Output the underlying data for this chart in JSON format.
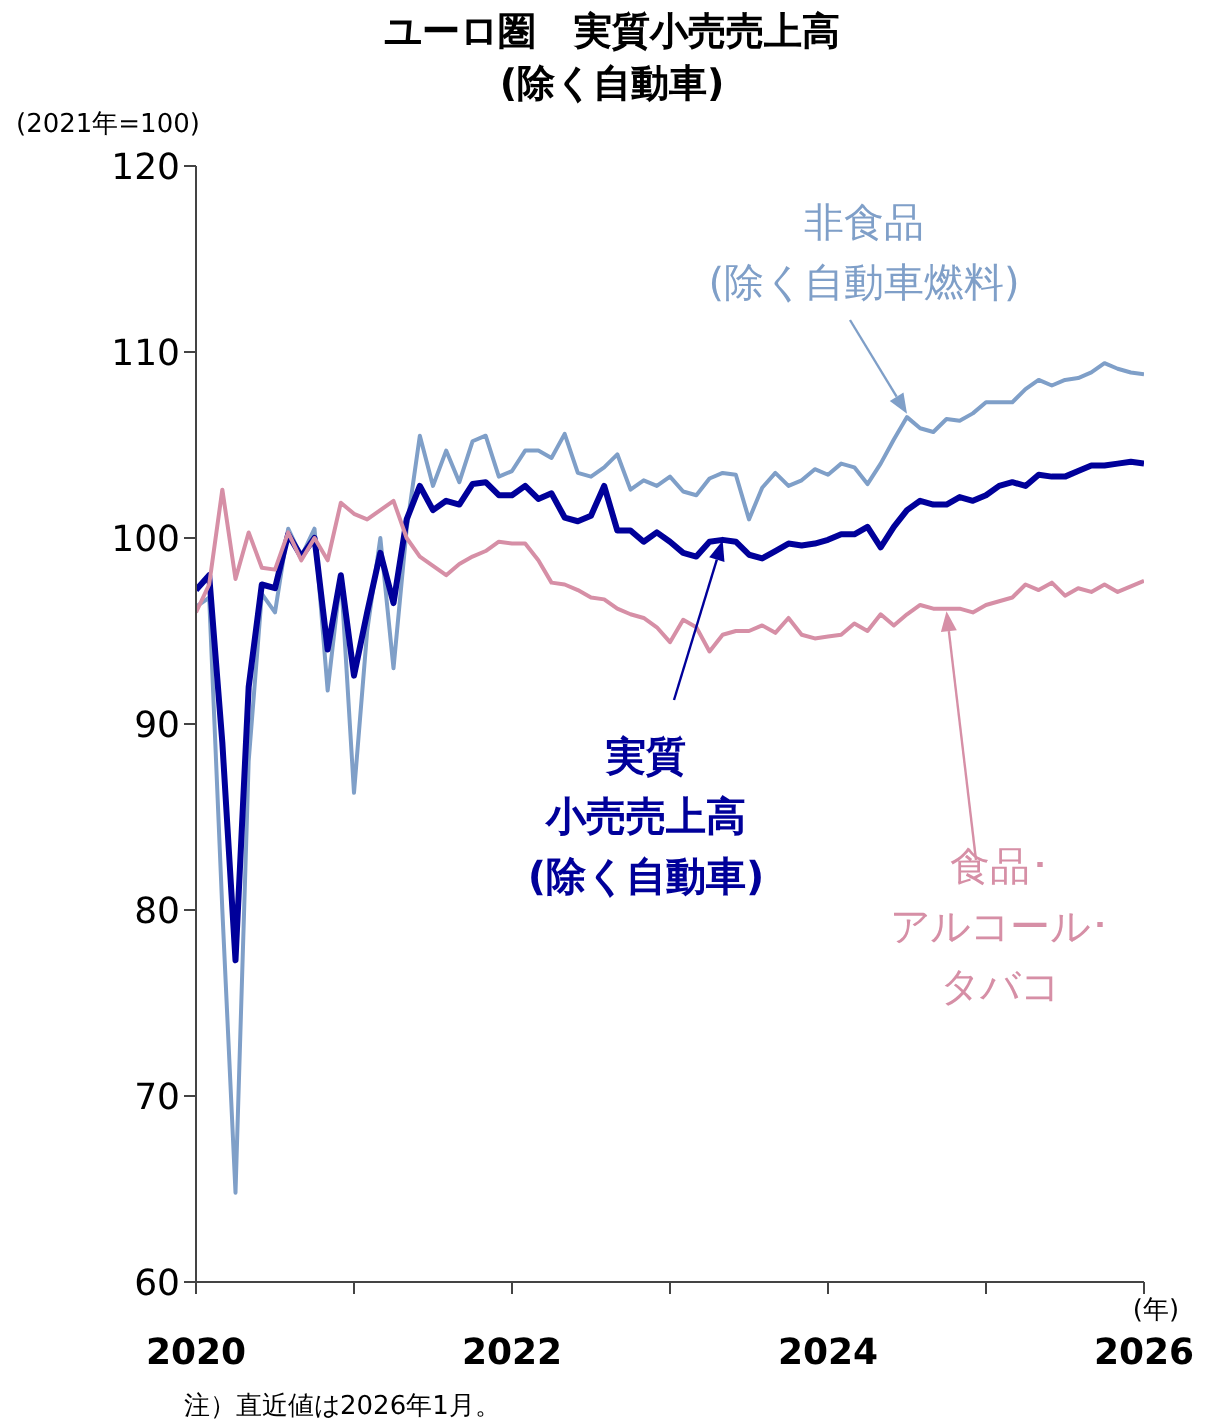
{
  "chart_data": {
    "type": "line",
    "title": "ユーロ圏　実質小売売上高\n(除く自動車)",
    "ylabel": "(2021年=100)",
    "xlabel": "(年)",
    "annotations": [
      "注）直近値は2026年1月。"
    ],
    "x": [
      "2020-01",
      "2020-02",
      "2020-03",
      "2020-04",
      "2020-05",
      "2020-06",
      "2020-07",
      "2020-08",
      "2020-09",
      "2020-10",
      "2020-11",
      "2020-12",
      "2021-01",
      "2021-02",
      "2021-03",
      "2021-04",
      "2021-05",
      "2021-06",
      "2021-07",
      "2021-08",
      "2021-09",
      "2021-10",
      "2021-11",
      "2021-12",
      "2022-01",
      "2022-02",
      "2022-03",
      "2022-04",
      "2022-05",
      "2022-06",
      "2022-07",
      "2022-08",
      "2022-09",
      "2022-10",
      "2022-11",
      "2022-12",
      "2023-01",
      "2023-02",
      "2023-03",
      "2023-04",
      "2023-05",
      "2023-06",
      "2023-07",
      "2023-08",
      "2023-09",
      "2023-10",
      "2023-11",
      "2023-12",
      "2024-01",
      "2024-02",
      "2024-03",
      "2024-04",
      "2024-05",
      "2024-06",
      "2024-07",
      "2024-08",
      "2024-09",
      "2024-10",
      "2024-11",
      "2024-12",
      "2025-01",
      "2025-02",
      "2025-03",
      "2025-04",
      "2025-05",
      "2025-06",
      "2025-07",
      "2025-08",
      "2025-09",
      "2025-10",
      "2025-11",
      "2025-12",
      "2026-01"
    ],
    "series": [
      {
        "name": "非食品(除く自動車燃料)",
        "color": "#7f9fc8",
        "values": [
          96.3,
          96.8,
          80,
          64.8,
          88,
          97,
          96,
          100.5,
          99,
          100.5,
          91.8,
          98,
          86.3,
          95,
          100,
          93,
          100.5,
          105.5,
          102.8,
          104.7,
          103,
          105.2,
          105.5,
          103.3,
          103.6,
          104.7,
          104.7,
          104.3,
          105.6,
          103.5,
          103.3,
          103.8,
          104.5,
          102.6,
          103.1,
          102.8,
          103.3,
          102.5,
          102.3,
          103.2,
          103.5,
          103.4,
          101,
          102.7,
          103.5,
          102.8,
          103.1,
          103.7,
          103.4,
          104,
          103.8,
          102.9,
          104,
          105.3,
          106.5,
          105.9,
          105.7,
          106.4,
          106.3,
          106.7,
          107.3,
          107.3,
          107.3,
          108,
          108.5,
          108.2,
          108.5,
          108.6,
          108.9,
          109.4,
          109.1,
          108.9,
          108.8
        ]
      },
      {
        "name": "実質小売売上高(除く自動車)",
        "color": "#00009a",
        "values": [
          97.2,
          98,
          89,
          77.3,
          92,
          97.5,
          97.3,
          100.2,
          99,
          100,
          94,
          98,
          92.6,
          96,
          99.2,
          96.5,
          101,
          102.8,
          101.5,
          102,
          101.8,
          102.9,
          103,
          102.3,
          102.3,
          102.8,
          102.1,
          102.4,
          101.1,
          100.9,
          101.2,
          102.8,
          100.4,
          100.4,
          99.8,
          100.3,
          99.8,
          99.2,
          99,
          99.8,
          99.9,
          99.8,
          99.1,
          98.9,
          99.3,
          99.7,
          99.6,
          99.7,
          99.9,
          100.2,
          100.2,
          100.6,
          99.5,
          100.6,
          101.5,
          102,
          101.8,
          101.8,
          102.2,
          102,
          102.3,
          102.8,
          103,
          102.8,
          103.4,
          103.3,
          103.3,
          103.6,
          103.9,
          103.9,
          104,
          104.1,
          104
        ]
      },
      {
        "name": "食品･アルコール･タバコ",
        "color": "#d68fa6",
        "values": [
          96,
          97.5,
          102.6,
          97.8,
          100.3,
          98.4,
          98.3,
          100.3,
          98.8,
          100,
          98.8,
          101.9,
          101.3,
          101,
          101.5,
          102,
          100,
          99,
          98.5,
          98,
          98.6,
          99,
          99.3,
          99.8,
          99.7,
          99.7,
          98.8,
          97.6,
          97.5,
          97.2,
          96.8,
          96.7,
          96.2,
          95.9,
          95.7,
          95.2,
          94.4,
          95.6,
          95.2,
          93.9,
          94.8,
          95,
          95,
          95.3,
          94.9,
          95.7,
          94.8,
          94.6,
          94.7,
          94.8,
          95.4,
          95,
          95.9,
          95.3,
          95.9,
          96.4,
          96.2,
          96.2,
          96.2,
          96,
          96.4,
          96.6,
          96.8,
          97.5,
          97.2,
          97.6,
          96.9,
          97.3,
          97.1,
          97.5,
          97.1,
          97.4,
          97.7
        ]
      }
    ],
    "xlim": [
      "2020",
      "2026"
    ],
    "xticks": [
      "2020",
      {
        "value": "2021",
        "label": null
      },
      "2022",
      {
        "value": "2023",
        "label": null
      },
      "2024",
      {
        "value": "2025",
        "label": null
      },
      "2026"
    ],
    "ylim": [
      60,
      120
    ],
    "yticks": [
      60,
      70,
      80,
      90,
      100,
      110,
      120
    ],
    "grid": false,
    "legend": false,
    "marker": "none",
    "line_style": "solid"
  }
}
